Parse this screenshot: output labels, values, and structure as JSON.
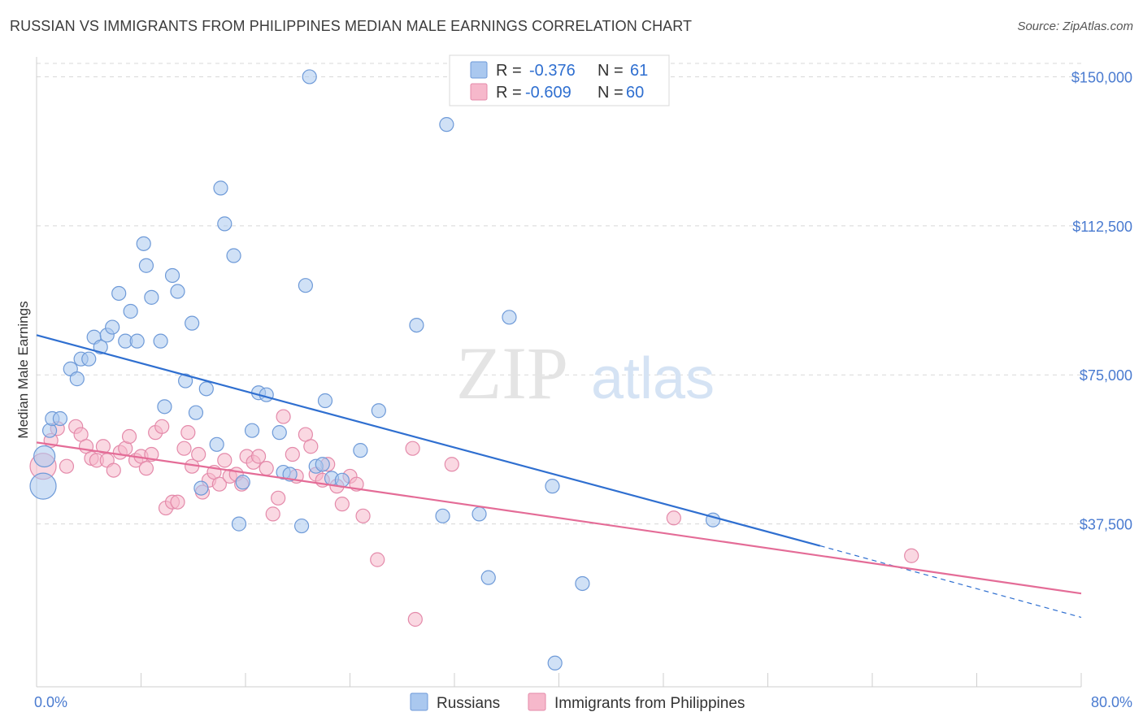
{
  "title": "RUSSIAN VS IMMIGRANTS FROM PHILIPPINES MEDIAN MALE EARNINGS CORRELATION CHART",
  "source": "Source: ZipAtlas.com",
  "watermark": {
    "zip": "ZIP",
    "atlas": "atlas"
  },
  "colors": {
    "blue_fill": "#aac8ef",
    "blue_line": "#2f6fd0",
    "blue_text": "#2f6fd0",
    "pink_fill": "#f6b8cb",
    "pink_line": "#e46c97",
    "pink_text": "#2f6fd0",
    "grid": "#d8d8d8"
  },
  "stats": [
    {
      "r_label": "R =",
      "r_value": "-0.376",
      "n_label": "N =",
      "n_value": "61"
    },
    {
      "r_label": "R =",
      "r_value": "-0.609",
      "n_label": "N =",
      "n_value": "60"
    }
  ],
  "chart_data": {
    "type": "scatter",
    "title": "RUSSIAN VS IMMIGRANTS FROM PHILIPPINES MEDIAN MALE EARNINGS CORRELATION CHART",
    "xlabel": "",
    "ylabel": "Median Male Earnings",
    "xlim": [
      0,
      80
    ],
    "ylim": [
      0,
      155000
    ],
    "x_tick_labels": [
      "0.0%",
      "80.0%"
    ],
    "y_ticks": [
      37500,
      75000,
      112500,
      150000
    ],
    "y_tick_labels": [
      "$37,500",
      "$75,000",
      "$112,500",
      "$150,000"
    ],
    "grid": true,
    "legend_position": "bottom",
    "series": [
      {
        "name": "Russians",
        "trend": {
          "x": [
            0,
            60
          ],
          "y": [
            85000,
            32000
          ],
          "dashed_to_x": 80,
          "dashed_to_y": 14000
        },
        "points": [
          [
            0.5,
            47000,
            3
          ],
          [
            0.6,
            54500,
            2
          ],
          [
            1.0,
            61000,
            1
          ],
          [
            1.2,
            64000,
            1
          ],
          [
            1.8,
            64000,
            1
          ],
          [
            2.6,
            76500,
            1
          ],
          [
            3.1,
            74000,
            1
          ],
          [
            3.4,
            79000,
            1
          ],
          [
            4.0,
            79000,
            1
          ],
          [
            4.4,
            84500,
            1
          ],
          [
            4.9,
            82000,
            1
          ],
          [
            5.4,
            85000,
            1
          ],
          [
            5.8,
            87000,
            1
          ],
          [
            6.3,
            95500,
            1
          ],
          [
            6.8,
            83500,
            1
          ],
          [
            7.2,
            91000,
            1
          ],
          [
            7.7,
            83500,
            1
          ],
          [
            8.2,
            108000,
            1
          ],
          [
            8.4,
            102500,
            1
          ],
          [
            8.8,
            94500,
            1
          ],
          [
            9.5,
            83500,
            1
          ],
          [
            9.8,
            67000,
            1
          ],
          [
            10.4,
            100000,
            1
          ],
          [
            10.8,
            96000,
            1
          ],
          [
            11.4,
            73500,
            1
          ],
          [
            11.9,
            88000,
            1
          ],
          [
            12.2,
            65500,
            1
          ],
          [
            12.6,
            46500,
            1
          ],
          [
            13.0,
            71500,
            1
          ],
          [
            13.8,
            57500,
            1
          ],
          [
            14.1,
            122000,
            1
          ],
          [
            14.4,
            113000,
            1
          ],
          [
            15.1,
            105000,
            1
          ],
          [
            15.5,
            37500,
            1
          ],
          [
            15.8,
            48000,
            1
          ],
          [
            16.5,
            61000,
            1
          ],
          [
            17.0,
            70500,
            1
          ],
          [
            17.6,
            70000,
            1
          ],
          [
            18.6,
            60500,
            1
          ],
          [
            18.9,
            50500,
            1
          ],
          [
            19.4,
            50000,
            1
          ],
          [
            20.3,
            37000,
            1
          ],
          [
            20.6,
            97500,
            1
          ],
          [
            20.9,
            150000,
            1
          ],
          [
            21.4,
            52000,
            1
          ],
          [
            21.9,
            52500,
            1
          ],
          [
            22.1,
            68500,
            1
          ],
          [
            22.6,
            49000,
            1
          ],
          [
            23.4,
            48500,
            1
          ],
          [
            24.8,
            56000,
            1
          ],
          [
            26.2,
            66000,
            1
          ],
          [
            29.1,
            87500,
            1
          ],
          [
            31.1,
            39500,
            1
          ],
          [
            31.4,
            138000,
            1
          ],
          [
            33.9,
            40000,
            1
          ],
          [
            34.6,
            24000,
            1
          ],
          [
            36.2,
            89500,
            1
          ],
          [
            39.5,
            47000,
            1
          ],
          [
            39.7,
            2500,
            1
          ],
          [
            41.8,
            22500,
            1
          ],
          [
            51.8,
            38500,
            1
          ]
        ]
      },
      {
        "name": "Immigrants from Philippines",
        "trend": {
          "x": [
            0,
            80
          ],
          "y": [
            58000,
            20000
          ]
        },
        "points": [
          [
            0.5,
            52000,
            3
          ],
          [
            1.1,
            58500,
            1
          ],
          [
            1.6,
            61500,
            1
          ],
          [
            2.3,
            52000,
            1
          ],
          [
            3.0,
            62000,
            1
          ],
          [
            3.4,
            60000,
            1
          ],
          [
            3.8,
            57000,
            1
          ],
          [
            4.2,
            54000,
            1
          ],
          [
            4.6,
            53500,
            1
          ],
          [
            5.1,
            57000,
            1
          ],
          [
            5.4,
            53500,
            1
          ],
          [
            5.9,
            51000,
            1
          ],
          [
            6.4,
            55500,
            1
          ],
          [
            6.8,
            56500,
            1
          ],
          [
            7.1,
            59500,
            1
          ],
          [
            7.6,
            53500,
            1
          ],
          [
            8.0,
            54500,
            1
          ],
          [
            8.4,
            51500,
            1
          ],
          [
            8.8,
            55000,
            1
          ],
          [
            9.1,
            60500,
            1
          ],
          [
            9.6,
            62000,
            1
          ],
          [
            9.9,
            41500,
            1
          ],
          [
            10.4,
            43000,
            1
          ],
          [
            10.8,
            43000,
            1
          ],
          [
            11.3,
            56500,
            1
          ],
          [
            11.6,
            60500,
            1
          ],
          [
            11.9,
            52000,
            1
          ],
          [
            12.4,
            55000,
            1
          ],
          [
            12.7,
            45500,
            1
          ],
          [
            13.2,
            48500,
            1
          ],
          [
            13.6,
            50500,
            1
          ],
          [
            14.0,
            47500,
            1
          ],
          [
            14.4,
            53500,
            1
          ],
          [
            14.8,
            49500,
            1
          ],
          [
            15.3,
            50000,
            1
          ],
          [
            15.7,
            47500,
            1
          ],
          [
            16.1,
            54500,
            1
          ],
          [
            16.6,
            53000,
            1
          ],
          [
            17.0,
            54500,
            1
          ],
          [
            17.6,
            51500,
            1
          ],
          [
            18.1,
            40000,
            1
          ],
          [
            18.5,
            44000,
            1
          ],
          [
            18.9,
            64500,
            1
          ],
          [
            19.6,
            55000,
            1
          ],
          [
            19.9,
            49500,
            1
          ],
          [
            20.6,
            60000,
            1
          ],
          [
            21.0,
            57000,
            1
          ],
          [
            21.4,
            50000,
            1
          ],
          [
            21.9,
            48500,
            1
          ],
          [
            22.3,
            52500,
            1
          ],
          [
            23.0,
            47000,
            1
          ],
          [
            23.4,
            42500,
            1
          ],
          [
            24.0,
            49500,
            1
          ],
          [
            24.5,
            47500,
            1
          ],
          [
            25.0,
            39500,
            1
          ],
          [
            26.1,
            28500,
            1
          ],
          [
            28.8,
            56500,
            1
          ],
          [
            29.0,
            13500,
            1
          ],
          [
            31.8,
            52500,
            1
          ],
          [
            48.8,
            39000,
            1
          ],
          [
            67.0,
            29500,
            1
          ]
        ]
      }
    ]
  }
}
